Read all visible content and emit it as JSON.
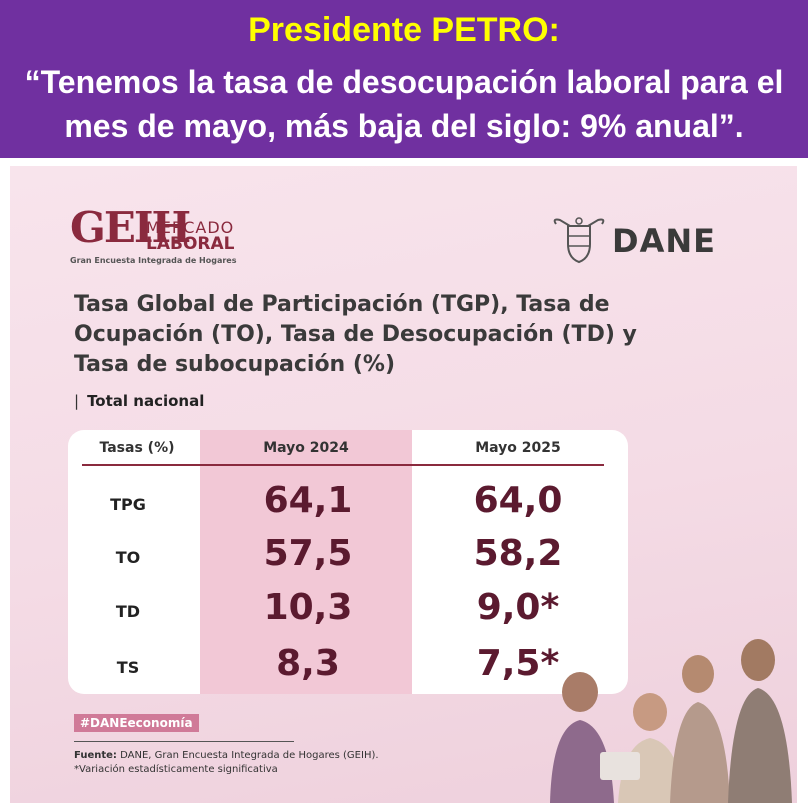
{
  "banner": {
    "line1": "Presidente PETRO:",
    "line2a": "“Tenemos la tasa de desocupación laboral para el",
    "line2b": "mes de mayo, más baja del siglo: 9% anual”."
  },
  "logo": {
    "geih": "GEIH",
    "mercado": "MERCADO",
    "laboral": "LABORAL",
    "subtitle": "Gran Encuesta Integrada de Hogares"
  },
  "dane": {
    "name": "DANE",
    "crest_icon": "colombia-coat-of-arms-icon"
  },
  "title": {
    "line1": "Tasa Global de Participación (TGP), Tasa de",
    "line2": "Ocupación (TO), Tasa de Desocupación (TD) y",
    "line3": "Tasa de subocupación (%)"
  },
  "section": {
    "bar": "|",
    "label": "Total nacional"
  },
  "table": {
    "headers": [
      "Tasas (%)",
      "Mayo 2024",
      "Mayo 2025"
    ],
    "rows": [
      {
        "label": "TPG",
        "may2024": "64,1",
        "may2025": "64,0"
      },
      {
        "label": "TO",
        "may2024": "57,5",
        "may2025": "58,2"
      },
      {
        "label": "TD",
        "may2024": "10,3",
        "may2025": "9,0*"
      },
      {
        "label": "TS",
        "may2024": "8,3",
        "may2025": "7,5*"
      }
    ]
  },
  "hashtag": "#DANEeconomía",
  "footer": {
    "fuente_label": "Fuente:",
    "fuente": " DANE, Gran Encuesta Integrada de Hogares (GEIH).",
    "nota": "*Variación estadísticamente significativa"
  },
  "colors": {
    "banner_bg": "#7030a0",
    "banner_title": "#ffff00",
    "accent": "#5b1a2f",
    "highlight": "#f2c8d6"
  }
}
